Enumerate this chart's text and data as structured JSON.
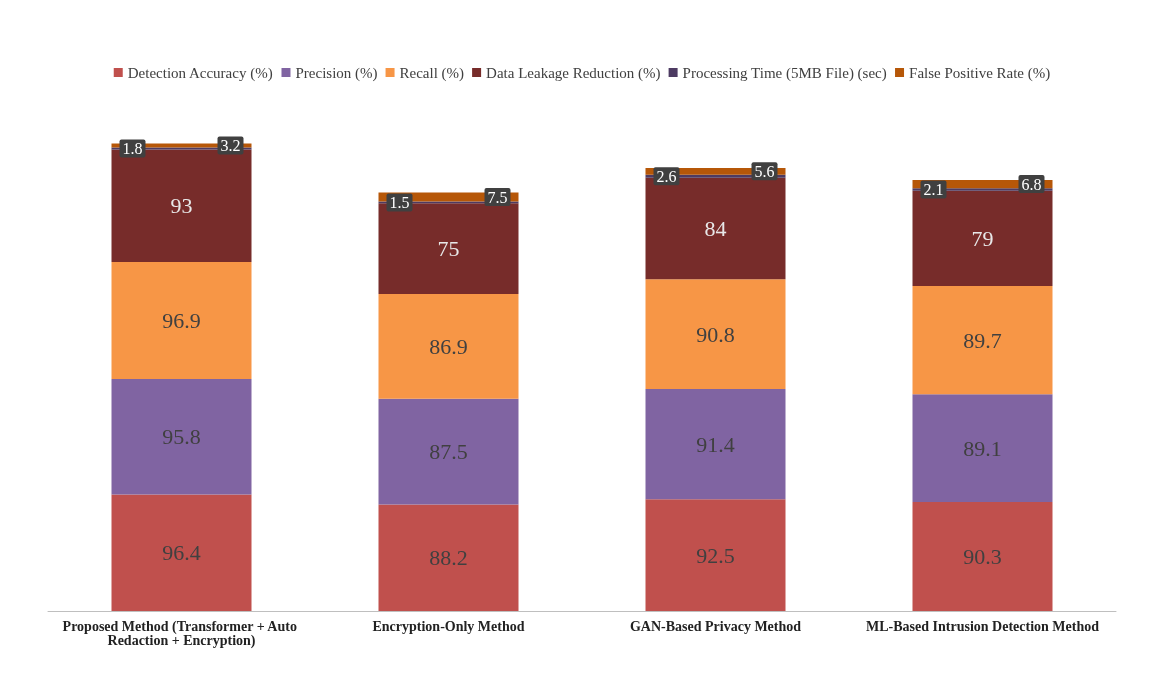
{
  "chart_data": {
    "type": "bar",
    "stacked": true,
    "data_labels": true,
    "legend": "top",
    "categories": [
      "Proposed Method (Transformer + Auto Redaction + Encryption)",
      "Encryption-Only Method",
      "GAN-Based Privacy Method",
      "ML-Based Intrusion Detection Method"
    ],
    "series": [
      {
        "name": "Detection Accuracy (%)",
        "color": "#c0504d",
        "values": [
          96.4,
          88.2,
          92.5,
          90.3
        ]
      },
      {
        "name": "Precision (%)",
        "color": "#8064a2",
        "values": [
          95.8,
          87.5,
          91.4,
          89.1
        ]
      },
      {
        "name": "Recall (%)",
        "color": "#f79646",
        "values": [
          96.9,
          86.9,
          90.8,
          89.7
        ]
      },
      {
        "name": "Data Leakage Reduction (%)",
        "color": "#772c2a",
        "values": [
          93,
          75,
          84,
          79
        ]
      },
      {
        "name": "Processing Time (5MB File) (sec)",
        "color": "#4d3b62",
        "values": [
          1.8,
          1.5,
          2.6,
          2.1
        ]
      },
      {
        "name": "False Positive Rate (%)",
        "color": "#b65708",
        "values": [
          3.2,
          7.5,
          5.6,
          6.8
        ]
      }
    ]
  }
}
